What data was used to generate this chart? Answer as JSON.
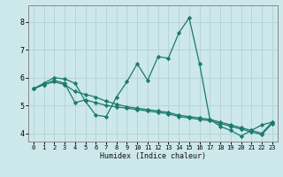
{
  "xlabel": "Humidex (Indice chaleur)",
  "background_color": "#cde8ea",
  "grid_color": "#b8d4d6",
  "line_color": "#1a7a6e",
  "xlim": [
    -0.5,
    23.5
  ],
  "ylim": [
    3.7,
    8.6
  ],
  "yticks": [
    4,
    5,
    6,
    7,
    8
  ],
  "xticks": [
    0,
    1,
    2,
    3,
    4,
    5,
    6,
    7,
    8,
    9,
    10,
    11,
    12,
    13,
    14,
    15,
    16,
    17,
    18,
    19,
    20,
    21,
    22,
    23
  ],
  "series": [
    [
      5.6,
      5.8,
      6.0,
      5.95,
      5.8,
      5.15,
      4.65,
      4.6,
      5.3,
      5.85,
      6.5,
      5.9,
      6.75,
      6.7,
      7.6,
      8.15,
      6.5,
      4.5,
      4.25,
      4.1,
      3.9,
      4.1,
      4.3,
      4.4
    ],
    [
      5.6,
      5.75,
      5.85,
      5.75,
      5.5,
      5.4,
      5.3,
      5.15,
      5.05,
      4.95,
      4.9,
      4.85,
      4.8,
      4.75,
      4.65,
      4.6,
      4.55,
      4.5,
      4.4,
      4.3,
      4.2,
      4.1,
      4.0,
      4.4
    ],
    [
      5.6,
      5.75,
      5.9,
      5.8,
      5.1,
      5.2,
      5.1,
      5.0,
      4.95,
      4.9,
      4.85,
      4.8,
      4.75,
      4.7,
      4.6,
      4.55,
      4.5,
      4.45,
      4.35,
      4.25,
      4.15,
      4.05,
      3.95,
      4.35
    ]
  ]
}
